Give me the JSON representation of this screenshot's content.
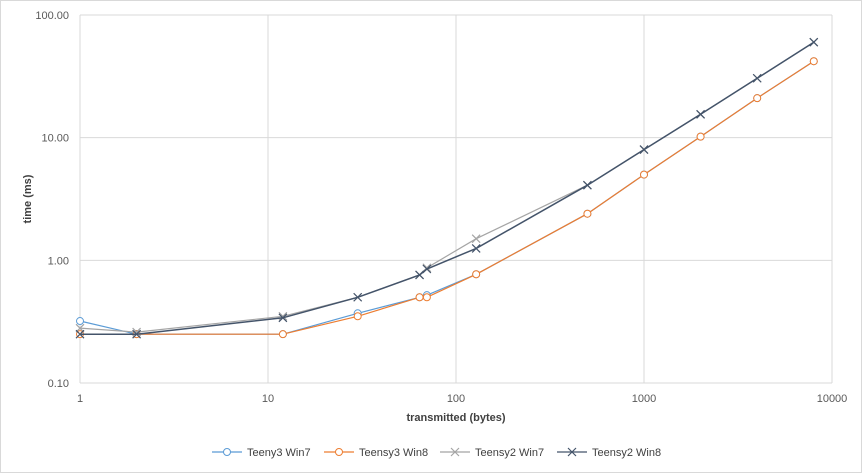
{
  "chart_data": {
    "type": "line",
    "title": "",
    "xlabel": "transmitted (bytes)",
    "ylabel": "time (ms)",
    "x_scale": "log",
    "y_scale": "log",
    "xlim": [
      1,
      10000
    ],
    "ylim": [
      0.1,
      100
    ],
    "x_ticks": [
      "1",
      "10",
      "100",
      "1000",
      "10000"
    ],
    "y_ticks": [
      "0.10",
      "1.00",
      "10.00",
      "100.00"
    ],
    "grid": true,
    "legend_position": "bottom",
    "series": [
      {
        "name": "Teeny3 Win7",
        "color": "#5b9bd5",
        "marker": "circle",
        "x": [
          1,
          2,
          12,
          30,
          64,
          70,
          128,
          500,
          1000,
          2000,
          4000,
          8000
        ],
        "y": [
          0.32,
          0.25,
          0.25,
          0.37,
          0.5,
          0.52,
          0.77,
          2.4,
          5.0,
          10.2,
          21.0,
          42.0
        ]
      },
      {
        "name": "Teensy3 Win8",
        "color": "#ed7d31",
        "marker": "circle",
        "x": [
          1,
          2,
          12,
          30,
          64,
          70,
          128,
          500,
          1000,
          2000,
          4000,
          8000
        ],
        "y": [
          0.25,
          0.25,
          0.25,
          0.35,
          0.5,
          0.5,
          0.77,
          2.4,
          5.0,
          10.2,
          21.0,
          42.0
        ]
      },
      {
        "name": "Teensy2 Win7",
        "color": "#a5a5a5",
        "marker": "x",
        "x": [
          1,
          2,
          12,
          30,
          64,
          70,
          128,
          500,
          1000,
          2000,
          4000,
          8000
        ],
        "y": [
          0.28,
          0.26,
          0.35,
          0.5,
          0.76,
          0.87,
          1.5,
          4.1,
          8.0,
          15.5,
          30.5,
          60.0
        ]
      },
      {
        "name": "Teensy2 Win8",
        "color": "#44546a",
        "marker": "x",
        "x": [
          1,
          2,
          12,
          30,
          64,
          70,
          128,
          500,
          1000,
          2000,
          4000,
          8000
        ],
        "y": [
          0.25,
          0.25,
          0.34,
          0.5,
          0.76,
          0.85,
          1.25,
          4.1,
          8.0,
          15.5,
          30.5,
          60.0
        ]
      }
    ]
  }
}
